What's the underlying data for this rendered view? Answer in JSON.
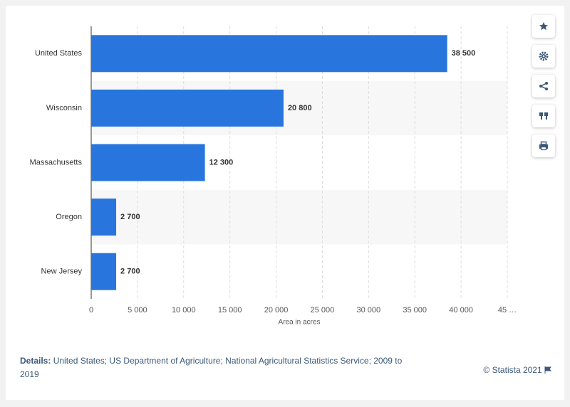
{
  "chart_data": {
    "type": "bar",
    "orientation": "horizontal",
    "categories": [
      "United States",
      "Wisconsin",
      "Massachusetts",
      "Oregon",
      "New Jersey"
    ],
    "values": [
      38500,
      20800,
      12300,
      2700,
      2700
    ],
    "value_labels": [
      "38 500",
      "20 800",
      "12 300",
      "2 700",
      "2 700"
    ],
    "color": "#2876dd",
    "xlabel": "Area in acres",
    "xlim": [
      0,
      45000
    ],
    "xticks": [
      0,
      {
        "value": 5000,
        "label": "5 000"
      },
      {
        "value": 10000,
        "label": "10 000"
      },
      {
        "value": 15000,
        "label": "15 000"
      },
      {
        "value": 20000,
        "label": "20 000"
      },
      {
        "value": 25000,
        "label": "25 000"
      },
      {
        "value": 30000,
        "label": "30 000"
      },
      {
        "value": 35000,
        "label": "35 000"
      },
      {
        "value": 40000,
        "label": "40 000"
      },
      {
        "value": 45000,
        "label": "45 …"
      }
    ],
    "grid": true
  },
  "footer": {
    "details_label": "Details:",
    "details": "United States; US Department of Agriculture; National Agricultural Statistics Service; 2009 to 2019",
    "copyright": "© Statista 2021"
  }
}
